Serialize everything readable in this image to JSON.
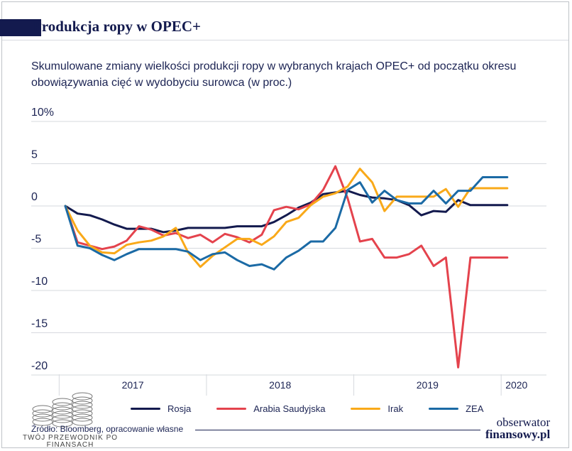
{
  "title": "Produkcja ropy w OPEC+",
  "subtitle": "Skumulowane zmiany wielkości produkcji ropy w wybranych krajach OPEC+ od początku okresu obowiązywania cięć w wydobyciu surowca (w proc.)",
  "source": "Źródło: Bloomberg, opracowanie własne",
  "brand": {
    "line1": "obserwator",
    "line2": "finansowy.pl"
  },
  "watermark": "TWÓJ PRZEWODNIK PO FINANSACH",
  "colors": {
    "rosja": "#131a4e",
    "arabia": "#e4434d",
    "irak": "#f9a919",
    "zea": "#1b6aa5",
    "grid": "#d6d9de",
    "text": "#1b2353"
  },
  "chart_data": {
    "type": "line",
    "title": "Produkcja ropy w OPEC+",
    "ylim": [
      -20,
      10
    ],
    "yticks": [
      10,
      5,
      0,
      -5,
      -10,
      -15,
      -20
    ],
    "ytick_labels": [
      "10%",
      "5",
      "0",
      "-5",
      "-10",
      "-15",
      "-20"
    ],
    "grid": "horizontal",
    "legend_position": "bottom",
    "x": [
      0,
      1,
      2,
      3,
      4,
      5,
      6,
      7,
      8,
      9,
      10,
      11,
      12,
      13,
      14,
      15,
      16,
      17,
      18,
      19,
      20,
      21,
      22,
      23,
      24,
      25,
      26,
      27,
      28,
      29,
      30,
      31,
      32,
      33,
      34,
      35,
      36
    ],
    "year_labels": [
      {
        "label": "2017",
        "from": 0,
        "to": 12
      },
      {
        "label": "2018",
        "from": 12,
        "to": 24
      },
      {
        "label": "2019",
        "from": 24,
        "to": 36
      },
      {
        "label": "2020",
        "from": 36,
        "to": 38.5
      }
    ],
    "series": [
      {
        "name": "Rosja",
        "color": "#131a4e",
        "values": [
          0,
          -0.9,
          -1.1,
          -1.6,
          -2.2,
          -2.7,
          -2.7,
          -2.7,
          -3.1,
          -2.9,
          -2.6,
          -2.6,
          -2.6,
          -2.6,
          -2.4,
          -2.4,
          -2.4,
          -1.9,
          -1.1,
          -0.2,
          0.4,
          1.4,
          1.6,
          1.8,
          1.3,
          1.0,
          0.9,
          0.7,
          0.1,
          -1.1,
          -0.6,
          -0.7,
          0.7,
          0.1,
          0.1,
          0.1,
          0.1
        ]
      },
      {
        "name": "Arabia Saudyjska",
        "color": "#e4434d",
        "values": [
          0,
          -4.3,
          -4.7,
          -5.1,
          -4.8,
          -4.1,
          -2.4,
          -2.8,
          -3.5,
          -3.2,
          -3.8,
          -3.4,
          -4.3,
          -3.3,
          -3.7,
          -4.3,
          -3.4,
          -0.5,
          -0.1,
          -0.4,
          0.2,
          1.9,
          4.7,
          0.9,
          -4.2,
          -3.9,
          -6.1,
          -6.1,
          -5.7,
          -4.7,
          -7.1,
          -6.1,
          -19.1,
          -6.1,
          -6.1,
          -6.1,
          -6.1
        ]
      },
      {
        "name": "Irak",
        "color": "#f9a919",
        "values": [
          0,
          -2.9,
          -4.7,
          -5.5,
          -5.6,
          -4.6,
          -4.3,
          -4.1,
          -3.6,
          -2.6,
          -5.5,
          -7.2,
          -5.9,
          -4.9,
          -3.9,
          -3.9,
          -4.6,
          -3.6,
          -1.9,
          -1.4,
          0.1,
          1.1,
          1.5,
          2.3,
          4.4,
          2.8,
          -0.6,
          1.1,
          1.1,
          1.1,
          1.1,
          2.0,
          -0.1,
          2.1,
          2.1,
          2.1,
          2.1
        ]
      },
      {
        "name": "ZEA",
        "color": "#1b6aa5",
        "values": [
          0,
          -4.7,
          -5.0,
          -5.8,
          -6.4,
          -5.7,
          -5.1,
          -5.1,
          -5.1,
          -5.1,
          -5.4,
          -6.4,
          -5.7,
          -5.5,
          -6.4,
          -7.1,
          -6.9,
          -7.5,
          -6.1,
          -5.3,
          -4.2,
          -4.2,
          -2.6,
          1.9,
          2.8,
          0.4,
          1.8,
          0.7,
          0.3,
          0.3,
          1.8,
          0.3,
          1.8,
          1.8,
          3.4,
          3.4,
          3.4
        ]
      }
    ]
  }
}
